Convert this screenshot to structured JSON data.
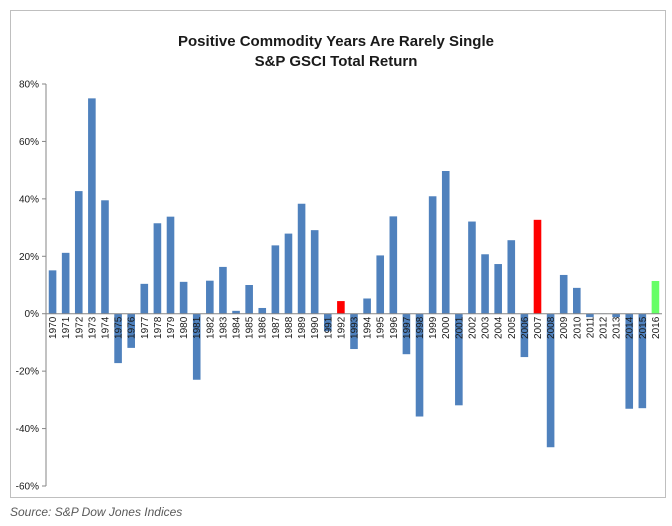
{
  "chart_data": {
    "type": "bar",
    "title": "Positive Commodity Years Are Rarely Single",
    "subtitle": "S&P GSCI Total Return",
    "xlabel": "",
    "ylabel": "",
    "ylim": [
      -60,
      80
    ],
    "yticks": [
      80,
      60,
      40,
      20,
      0,
      -20,
      -40,
      -60
    ],
    "ytick_labels": [
      "80%",
      "60%",
      "40%",
      "20%",
      "0%",
      "-20%",
      "-40%",
      "-60%"
    ],
    "grid": false,
    "legend": "none",
    "categories": [
      "1970",
      "1971",
      "1972",
      "1973",
      "1974",
      "1975",
      "1976",
      "1977",
      "1978",
      "1979",
      "1980",
      "1981",
      "1982",
      "1983",
      "1984",
      "1985",
      "1986",
      "1987",
      "1988",
      "1989",
      "1990",
      "1991",
      "1992",
      "1993",
      "1994",
      "1995",
      "1996",
      "1997",
      "1998",
      "1999",
      "2000",
      "2001",
      "2002",
      "2003",
      "2004",
      "2005",
      "2006",
      "2007",
      "2008",
      "2009",
      "2010",
      "2011",
      "2012",
      "2013",
      "2014",
      "2015",
      "2016"
    ],
    "values": [
      15.1,
      21.2,
      42.7,
      75.0,
      39.5,
      -17.2,
      -11.9,
      10.4,
      31.5,
      33.8,
      11.1,
      -23.0,
      11.5,
      16.3,
      1.0,
      10.0,
      2.0,
      23.8,
      27.9,
      38.3,
      29.1,
      -6.1,
      4.4,
      -12.3,
      5.3,
      20.3,
      33.9,
      -14.1,
      -35.8,
      40.9,
      49.7,
      -31.9,
      32.1,
      20.7,
      17.3,
      25.6,
      -15.1,
      32.7,
      -46.5,
      13.5,
      9.0,
      -1.2,
      0.1,
      -1.2,
      -33.1,
      -32.9,
      11.4
    ],
    "colors": {
      "default": "#4f81bd",
      "highlight": {
        "1992": "#ff0000",
        "2007": "#ff0000",
        "2016": "#66ff66"
      }
    }
  },
  "footer": {
    "source": "Source: S&P Dow Jones Indices"
  }
}
